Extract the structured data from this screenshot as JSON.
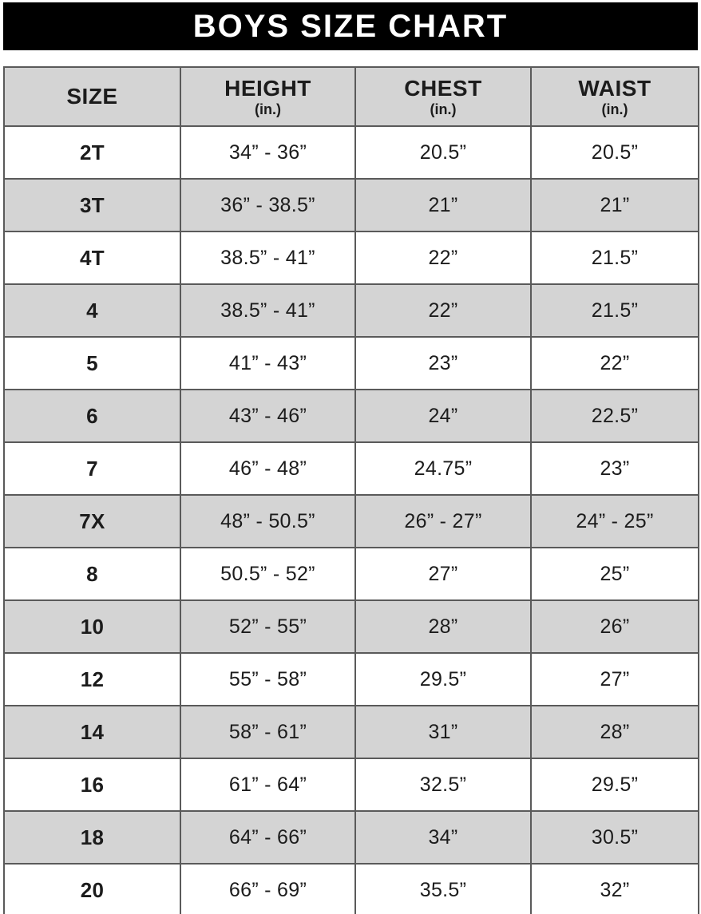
{
  "banner": {
    "title": "BOYS SIZE CHART"
  },
  "chart_data": {
    "type": "table",
    "title": "BOYS SIZE CHART",
    "columns": [
      {
        "label": "SIZE",
        "unit": ""
      },
      {
        "label": "HEIGHT",
        "unit": "(in.)"
      },
      {
        "label": "CHEST",
        "unit": "(in.)"
      },
      {
        "label": "WAIST",
        "unit": "(in.)"
      }
    ],
    "rows": [
      [
        "2T",
        "34” - 36”",
        "20.5”",
        "20.5”"
      ],
      [
        "3T",
        "36” - 38.5”",
        "21”",
        "21”"
      ],
      [
        "4T",
        "38.5” - 41”",
        "22”",
        "21.5”"
      ],
      [
        "4",
        "38.5” - 41”",
        "22”",
        "21.5”"
      ],
      [
        "5",
        "41” - 43”",
        "23”",
        "22”"
      ],
      [
        "6",
        "43” - 46”",
        "24”",
        "22.5”"
      ],
      [
        "7",
        "46” - 48”",
        "24.75”",
        "23”"
      ],
      [
        "7X",
        "48” - 50.5”",
        "26” - 27”",
        "24” - 25”"
      ],
      [
        "8",
        "50.5” - 52”",
        "27”",
        "25”"
      ],
      [
        "10",
        "52” - 55”",
        "28”",
        "26”"
      ],
      [
        "12",
        "55” - 58”",
        "29.5”",
        "27”"
      ],
      [
        "14",
        "58” - 61”",
        "31”",
        "28”"
      ],
      [
        "16",
        "61” - 64”",
        "32.5”",
        "29.5”"
      ],
      [
        "18",
        "64” - 66”",
        "34”",
        "30.5”"
      ],
      [
        "20",
        "66” - 69”",
        "35.5”",
        "32”"
      ]
    ],
    "layout": {
      "striped": true,
      "stripe_pattern": "alternating rows gray starting at second data row",
      "header_background": "gray"
    }
  },
  "colors": {
    "banner_bg": "#000000",
    "banner_text": "#ffffff",
    "stripe_gray": "#d4d4d4",
    "border": "#5a5a5a",
    "outer_border": "#3c3c3c",
    "text": "#1c1c1c"
  }
}
